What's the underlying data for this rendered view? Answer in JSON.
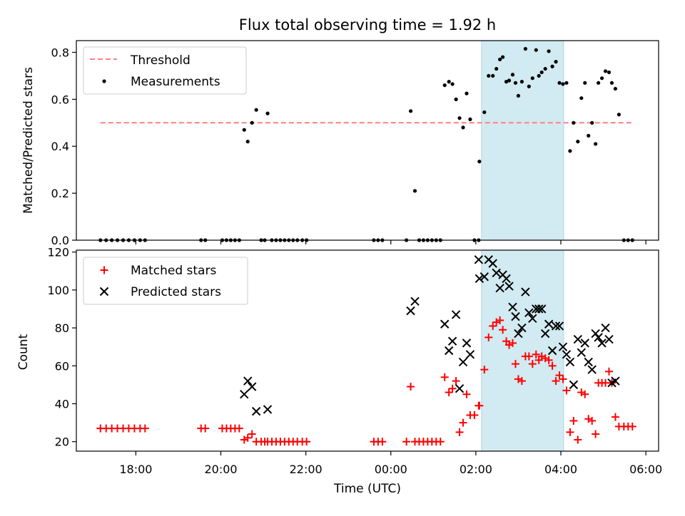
{
  "title": "Flux total observing time = 1.92 h",
  "colors": {
    "threshold": "#ff7f7f",
    "measurement": "#000000",
    "matched": "#ff0000",
    "predicted": "#000000",
    "shade": "#add8e6"
  },
  "chart_data": [
    {
      "type": "scatter",
      "ylabel": "Matched/Predicted stars",
      "xlim": [
        16.6,
        6.3
      ],
      "ylim": [
        0,
        0.85
      ],
      "yticks": [
        0,
        0.2,
        0.4,
        0.6,
        0.8
      ],
      "ytick_labels": [
        "0.0",
        "0.2",
        "0.4",
        "0.6",
        "0.8"
      ],
      "grid": false,
      "legend": {
        "position": "upper-left",
        "entries": [
          "Threshold",
          "Measurements"
        ]
      },
      "shaded_region": {
        "x": [
          "02:08",
          "04:04"
        ]
      },
      "threshold": {
        "name": "Threshold",
        "value": 0.5,
        "x": [
          "17:10",
          "05:40"
        ]
      },
      "series": [
        {
          "name": "Measurements",
          "points": [
            [
              "17:10",
              0
            ],
            [
              "17:18",
              0
            ],
            [
              "17:26",
              0
            ],
            [
              "17:34",
              0
            ],
            [
              "17:42",
              0
            ],
            [
              "17:50",
              0
            ],
            [
              "17:58",
              0
            ],
            [
              "18:06",
              0
            ],
            [
              "18:13",
              0
            ],
            [
              "19:32",
              0
            ],
            [
              "19:38",
              0
            ],
            [
              "20:02",
              0
            ],
            [
              "20:08",
              0
            ],
            [
              "20:14",
              0
            ],
            [
              "20:20",
              0
            ],
            [
              "20:26",
              0
            ],
            [
              "20:33",
              0.47
            ],
            [
              "20:38",
              0.42
            ],
            [
              "20:44",
              0.5
            ],
            [
              "20:50",
              0.555
            ],
            [
              "20:57",
              0
            ],
            [
              "21:02",
              0
            ],
            [
              "21:06",
              0.54
            ],
            [
              "21:12",
              0
            ],
            [
              "21:18",
              0
            ],
            [
              "21:24",
              0
            ],
            [
              "21:30",
              0
            ],
            [
              "21:36",
              0
            ],
            [
              "21:42",
              0
            ],
            [
              "21:48",
              0
            ],
            [
              "21:55",
              0
            ],
            [
              "22:01",
              0
            ],
            [
              "23:36",
              0
            ],
            [
              "23:42",
              0
            ],
            [
              "23:48",
              0
            ],
            [
              "00:22",
              0
            ],
            [
              "00:28",
              0.55
            ],
            [
              "00:34",
              0.21
            ],
            [
              "00:40",
              0
            ],
            [
              "00:46",
              0
            ],
            [
              "00:52",
              0
            ],
            [
              "00:58",
              0
            ],
            [
              "01:04",
              0
            ],
            [
              "01:10",
              0
            ],
            [
              "01:16",
              0.66
            ],
            [
              "01:22",
              0.675
            ],
            [
              "01:27",
              0.665
            ],
            [
              "01:32",
              0.6
            ],
            [
              "01:37",
              0.52
            ],
            [
              "01:42",
              0.48
            ],
            [
              "01:47",
              0.625
            ],
            [
              "01:52",
              0.515
            ],
            [
              "01:58",
              0
            ],
            [
              "02:04",
              0
            ],
            [
              "02:05",
              0.335
            ],
            [
              "02:12",
              0.545
            ],
            [
              "02:18",
              0.7
            ],
            [
              "02:24",
              0.7
            ],
            [
              "02:29",
              0.73
            ],
            [
              "02:34",
              0.77
            ],
            [
              "02:38",
              0.78
            ],
            [
              "02:43",
              0.675
            ],
            [
              "02:47",
              0.68
            ],
            [
              "02:52",
              0.705
            ],
            [
              "02:56",
              0.67
            ],
            [
              "03:00",
              0.615
            ],
            [
              "03:05",
              0.675
            ],
            [
              "03:10",
              0.815
            ],
            [
              "03:15",
              0.655
            ],
            [
              "03:20",
              0.69
            ],
            [
              "03:25",
              0.81
            ],
            [
              "03:29",
              0.7
            ],
            [
              "03:33",
              0.715
            ],
            [
              "03:38",
              0.73
            ],
            [
              "03:43",
              0.805
            ],
            [
              "03:48",
              0.74
            ],
            [
              "03:53",
              0.76
            ],
            [
              "03:58",
              0.67
            ],
            [
              "04:03",
              0.665
            ],
            [
              "04:08",
              0.67
            ],
            [
              "04:13",
              0.38
            ],
            [
              "04:18",
              0.5
            ],
            [
              "04:24",
              0.42
            ],
            [
              "04:29",
              0.605
            ],
            [
              "04:34",
              0.67
            ],
            [
              "04:39",
              0.445
            ],
            [
              "04:44",
              0.5
            ],
            [
              "04:49",
              0.41
            ],
            [
              "04:53",
              0.67
            ],
            [
              "04:58",
              0.69
            ],
            [
              "05:03",
              0.72
            ],
            [
              "05:08",
              0.715
            ],
            [
              "05:12",
              0.67
            ],
            [
              "05:17",
              0.645
            ],
            [
              "05:22",
              0.535
            ],
            [
              "05:29",
              0
            ],
            [
              "05:35",
              0
            ],
            [
              "05:41",
              0
            ]
          ]
        }
      ]
    },
    {
      "type": "scatter",
      "ylabel": "Count",
      "xlabel": "Time (UTC)",
      "xlim": [
        16.6,
        6.3
      ],
      "ylim": [
        15,
        121
      ],
      "yticks": [
        20,
        40,
        60,
        80,
        100,
        120
      ],
      "ytick_labels": [
        "20",
        "40",
        "60",
        "80",
        "100",
        "120"
      ],
      "xticks": [
        "18:00",
        "20:00",
        "22:00",
        "00:00",
        "02:00",
        "04:00",
        "06:00"
      ],
      "grid": false,
      "legend": {
        "position": "upper-left",
        "entries": [
          "Matched stars",
          "Predicted stars"
        ]
      },
      "shaded_region": {
        "x": [
          "02:08",
          "04:04"
        ]
      },
      "series": [
        {
          "name": "Matched stars",
          "marker": "plus",
          "points": [
            [
              "17:10",
              27
            ],
            [
              "17:18",
              27
            ],
            [
              "17:26",
              27
            ],
            [
              "17:34",
              27
            ],
            [
              "17:42",
              27
            ],
            [
              "17:50",
              27
            ],
            [
              "17:58",
              27
            ],
            [
              "18:06",
              27
            ],
            [
              "18:13",
              27
            ],
            [
              "19:32",
              27
            ],
            [
              "19:38",
              27
            ],
            [
              "20:02",
              27
            ],
            [
              "20:08",
              27
            ],
            [
              "20:14",
              27
            ],
            [
              "20:20",
              27
            ],
            [
              "20:26",
              27
            ],
            [
              "20:33",
              21
            ],
            [
              "20:38",
              22
            ],
            [
              "20:44",
              24
            ],
            [
              "20:50",
              20
            ],
            [
              "20:57",
              20
            ],
            [
              "21:02",
              20
            ],
            [
              "21:06",
              20
            ],
            [
              "21:12",
              20
            ],
            [
              "21:18",
              20
            ],
            [
              "21:24",
              20
            ],
            [
              "21:30",
              20
            ],
            [
              "21:36",
              20
            ],
            [
              "21:42",
              20
            ],
            [
              "21:48",
              20
            ],
            [
              "21:55",
              20
            ],
            [
              "22:01",
              20
            ],
            [
              "23:36",
              20
            ],
            [
              "23:42",
              20
            ],
            [
              "23:48",
              20
            ],
            [
              "00:22",
              20
            ],
            [
              "00:28",
              49
            ],
            [
              "00:34",
              20
            ],
            [
              "00:40",
              20
            ],
            [
              "00:46",
              20
            ],
            [
              "00:52",
              20
            ],
            [
              "00:58",
              20
            ],
            [
              "01:04",
              20
            ],
            [
              "01:10",
              20
            ],
            [
              "01:16",
              54
            ],
            [
              "01:22",
              46
            ],
            [
              "01:27",
              48
            ],
            [
              "01:32",
              52
            ],
            [
              "01:37",
              25
            ],
            [
              "01:42",
              30
            ],
            [
              "01:47",
              45
            ],
            [
              "01:52",
              34
            ],
            [
              "01:58",
              34
            ],
            [
              "02:04",
              39
            ],
            [
              "02:05",
              39
            ],
            [
              "02:12",
              58
            ],
            [
              "02:18",
              75
            ],
            [
              "02:24",
              81
            ],
            [
              "02:29",
              83
            ],
            [
              "02:34",
              84
            ],
            [
              "02:38",
              79
            ],
            [
              "02:43",
              73
            ],
            [
              "02:47",
              71
            ],
            [
              "02:52",
              72
            ],
            [
              "02:56",
              61
            ],
            [
              "03:00",
              53
            ],
            [
              "03:05",
              52
            ],
            [
              "03:10",
              65
            ],
            [
              "03:15",
              65
            ],
            [
              "03:20",
              61
            ],
            [
              "03:25",
              66
            ],
            [
              "03:29",
              63
            ],
            [
              "03:33",
              65
            ],
            [
              "03:38",
              64
            ],
            [
              "03:43",
              63
            ],
            [
              "03:48",
              60
            ],
            [
              "03:53",
              52
            ],
            [
              "03:58",
              55
            ],
            [
              "04:03",
              53
            ],
            [
              "04:08",
              47
            ],
            [
              "04:13",
              25
            ],
            [
              "04:18",
              31
            ],
            [
              "04:24",
              21
            ],
            [
              "04:29",
              46
            ],
            [
              "04:34",
              45
            ],
            [
              "04:39",
              32
            ],
            [
              "04:44",
              31
            ],
            [
              "04:49",
              24
            ],
            [
              "04:53",
              51
            ],
            [
              "04:58",
              51
            ],
            [
              "05:03",
              51
            ],
            [
              "05:08",
              57
            ],
            [
              "05:12",
              51
            ],
            [
              "05:17",
              33
            ],
            [
              "05:22",
              28
            ],
            [
              "05:29",
              28
            ],
            [
              "05:35",
              28
            ],
            [
              "05:41",
              28
            ]
          ]
        },
        {
          "name": "Predicted stars",
          "marker": "x",
          "points": [
            [
              "20:33",
              45
            ],
            [
              "20:38",
              52
            ],
            [
              "20:44",
              49
            ],
            [
              "20:50",
              36
            ],
            [
              "21:06",
              37
            ],
            [
              "00:28",
              89
            ],
            [
              "00:34",
              94
            ],
            [
              "01:16",
              82
            ],
            [
              "01:22",
              68
            ],
            [
              "01:27",
              73
            ],
            [
              "01:32",
              87
            ],
            [
              "01:37",
              48
            ],
            [
              "01:42",
              62
            ],
            [
              "01:47",
              72
            ],
            [
              "01:52",
              66
            ],
            [
              "02:04",
              116
            ],
            [
              "02:05",
              106
            ],
            [
              "02:12",
              107
            ],
            [
              "02:18",
              116
            ],
            [
              "02:24",
              114
            ],
            [
              "02:29",
              109
            ],
            [
              "02:34",
              101
            ],
            [
              "02:38",
              108
            ],
            [
              "02:43",
              106
            ],
            [
              "02:47",
              102
            ],
            [
              "02:52",
              91
            ],
            [
              "02:56",
              86
            ],
            [
              "03:00",
              77
            ],
            [
              "03:05",
              80
            ],
            [
              "03:10",
              99
            ],
            [
              "03:15",
              88
            ],
            [
              "03:20",
              85
            ],
            [
              "03:25",
              90
            ],
            [
              "03:29",
              90
            ],
            [
              "03:33",
              90
            ],
            [
              "03:38",
              77
            ],
            [
              "03:43",
              82
            ],
            [
              "03:48",
              68
            ],
            [
              "03:53",
              81
            ],
            [
              "03:58",
              81
            ],
            [
              "04:03",
              70
            ],
            [
              "04:08",
              66
            ],
            [
              "04:13",
              62
            ],
            [
              "04:18",
              50
            ],
            [
              "04:24",
              74
            ],
            [
              "04:29",
              67
            ],
            [
              "04:34",
              72
            ],
            [
              "04:39",
              62
            ],
            [
              "04:44",
              58
            ],
            [
              "04:49",
              77
            ],
            [
              "04:53",
              75
            ],
            [
              "04:58",
              72
            ],
            [
              "05:03",
              80
            ],
            [
              "05:08",
              74
            ],
            [
              "05:12",
              51
            ],
            [
              "05:17",
              52
            ]
          ]
        }
      ]
    }
  ]
}
